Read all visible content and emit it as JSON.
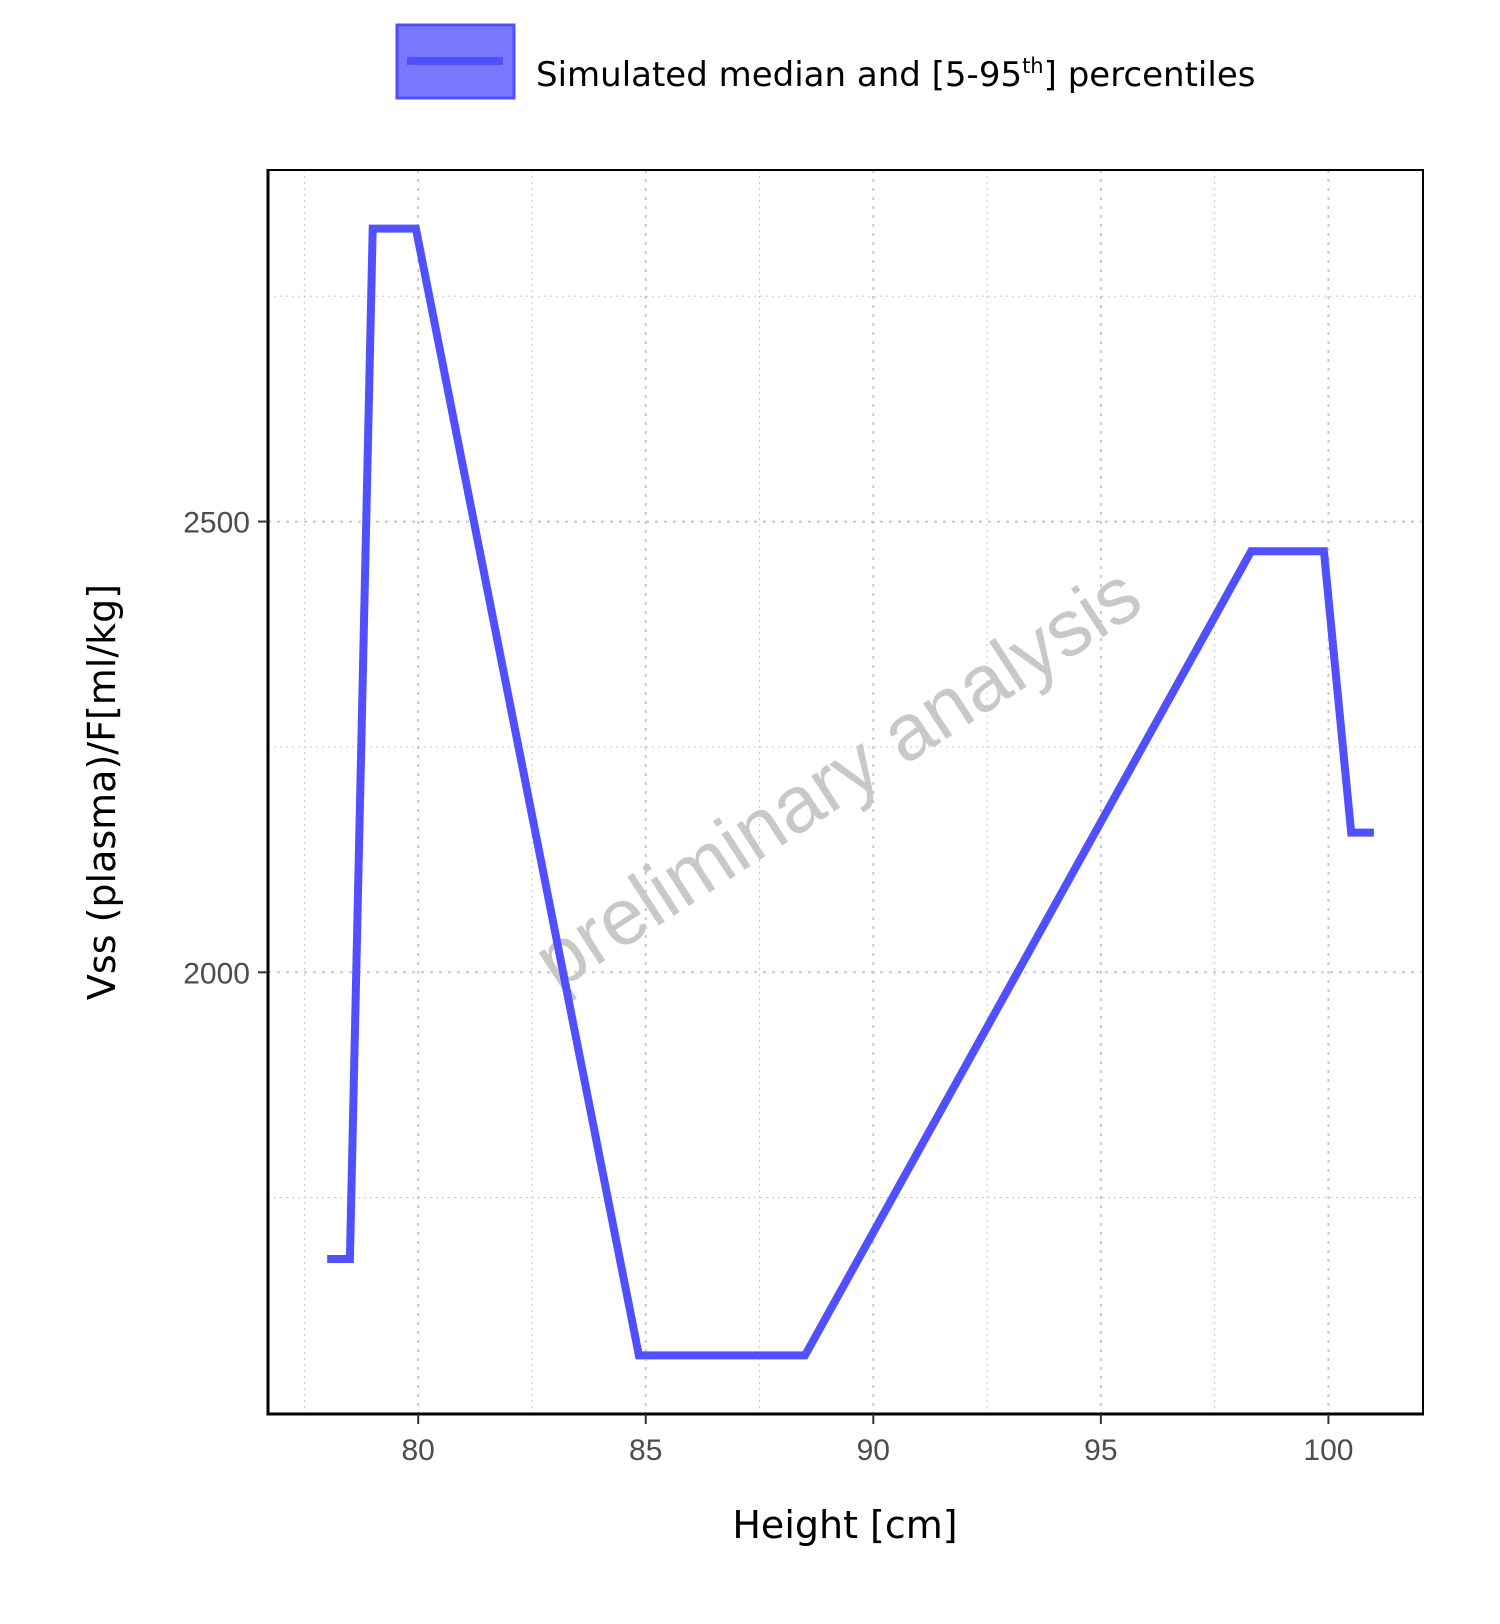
{
  "legend": {
    "label_main": "Simulated median and [5-95",
    "label_sup": "th",
    "label_end": "] percentiles"
  },
  "watermark": "preliminary analysis",
  "chart_data": {
    "type": "line",
    "xlabel": "Height [cm]",
    "ylabel": "Vss (plasma)/F[ml/kg]",
    "xlim": [
      76.7,
      102.1
    ],
    "ylim": [
      1510,
      2890
    ],
    "x_ticks": [
      80,
      85,
      90,
      95,
      100
    ],
    "x_tick_labels": [
      "80",
      "85",
      "90",
      "95",
      "100"
    ],
    "x_minor_ticks": [
      77.5,
      82.5,
      87.5,
      92.5,
      97.5
    ],
    "y_ticks": [
      2000,
      2500
    ],
    "y_tick_labels": [
      "2000",
      "2500"
    ],
    "y_minor_ticks": [
      1750,
      2250,
      2750
    ],
    "grid": true,
    "legend_position": "top",
    "colors": {
      "line": "#5050ff",
      "ribbon": "#7878ff",
      "grid": "#c8c8c8",
      "axis": "#000000"
    },
    "series": [
      {
        "x": [
          78.0,
          78.5,
          79.0,
          79.95,
          84.85,
          88.5,
          98.3,
          99.9,
          100.5,
          101.0
        ],
        "y": [
          1682,
          1682,
          2825,
          2825,
          1575,
          1575,
          2467,
          2467,
          2155,
          2155
        ]
      }
    ]
  }
}
